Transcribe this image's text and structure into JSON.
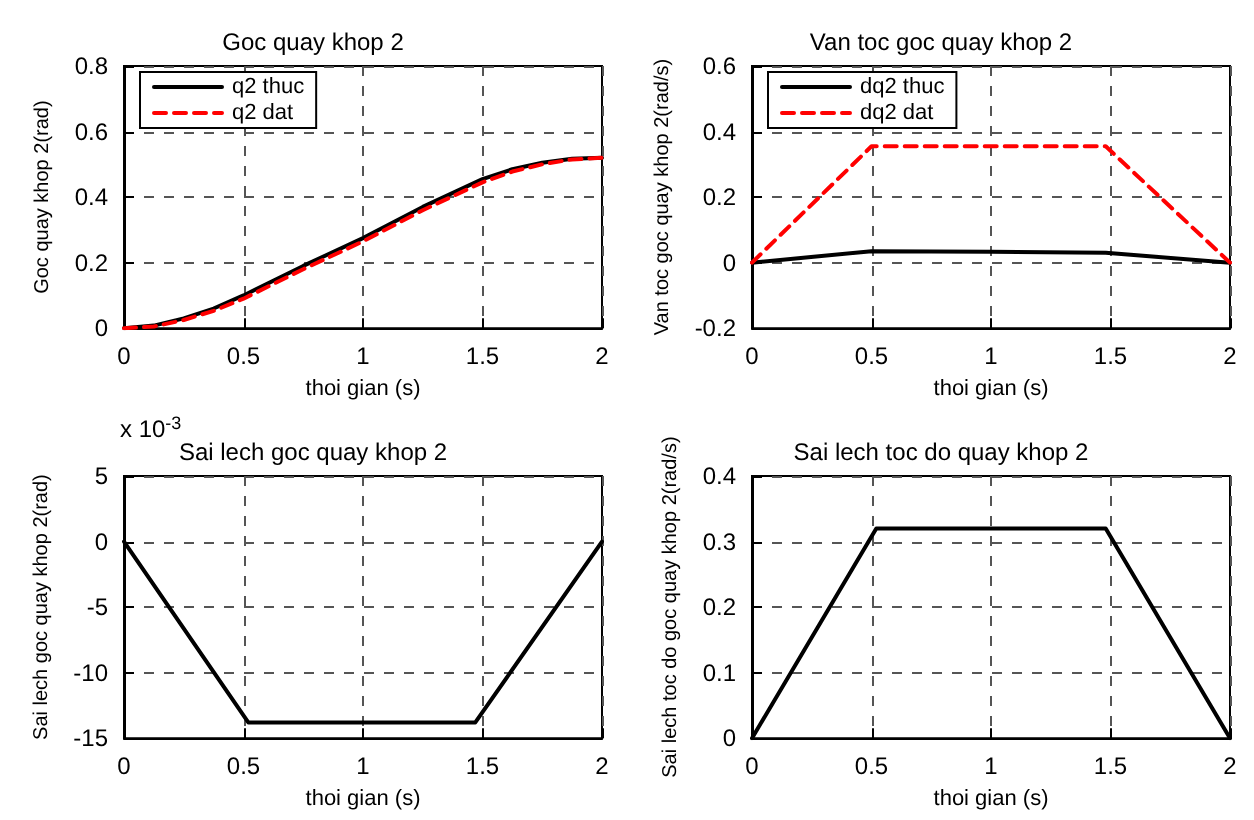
{
  "chart_data": [
    {
      "type": "line",
      "title": "Goc quay khop 2",
      "xlabel": "thoi gian (s)",
      "ylabel": "Goc quay khop 2(rad)",
      "x": [
        0,
        0.125,
        0.25,
        0.375,
        0.5,
        0.75,
        1,
        1.25,
        1.5,
        1.625,
        1.75,
        1.875,
        2
      ],
      "series": [
        {
          "name": "q2 thuc",
          "color": "#000000",
          "line_style": "solid",
          "values": [
            0,
            0.008,
            0.03,
            0.06,
            0.1,
            0.19,
            0.275,
            0.37,
            0.455,
            0.485,
            0.505,
            0.517,
            0.52
          ]
        },
        {
          "name": "q2 dat",
          "color": "#ff0000",
          "line_style": "dashed",
          "values": [
            0,
            0.005,
            0.025,
            0.053,
            0.09,
            0.18,
            0.265,
            0.36,
            0.445,
            0.478,
            0.5,
            0.515,
            0.52
          ]
        }
      ],
      "xlim": [
        0,
        2
      ],
      "xticks": [
        0,
        0.5,
        1,
        1.5,
        2
      ],
      "ylim": [
        0,
        0.8
      ],
      "yticks": [
        0,
        0.2,
        0.4,
        0.6,
        0.8
      ],
      "grid": true,
      "legend": "top left",
      "marker": "none"
    },
    {
      "type": "line",
      "title": "Van toc goc quay khop 2",
      "xlabel": "thoi gian (s)",
      "ylabel": "Van toc goc quay khop 2(rad/s)",
      "x": [
        0,
        0.5,
        1,
        1.48,
        2
      ],
      "series": [
        {
          "name": "dq2 thuc",
          "color": "#000000",
          "line_style": "solid",
          "values": [
            0,
            0.035,
            0.033,
            0.03,
            0
          ]
        },
        {
          "name": "dq2 dat",
          "color": "#ff0000",
          "line_style": "dashed",
          "values": [
            0,
            0.355,
            0.355,
            0.355,
            0
          ]
        }
      ],
      "xlim": [
        0,
        2
      ],
      "xticks": [
        0,
        0.5,
        1,
        1.5,
        2
      ],
      "ylim": [
        -0.2,
        0.6
      ],
      "yticks": [
        -0.2,
        0,
        0.2,
        0.4,
        0.6
      ],
      "grid": true,
      "legend": "top left",
      "marker": "none"
    },
    {
      "type": "line",
      "title": "Sai lech goc quay khop 2",
      "xlabel": "thoi gian (s)",
      "ylabel": "Sai lech goc quay khop 2(rad)",
      "annotations": [
        "x 10$^{-3}$"
      ],
      "x": [
        0,
        0.52,
        1,
        1.47,
        2
      ],
      "series": [
        {
          "color": "#000000",
          "line_style": "solid",
          "values": [
            0,
            -13.8,
            -13.8,
            -13.8,
            0
          ]
        }
      ],
      "xlim": [
        0,
        2
      ],
      "xticks": [
        0,
        0.5,
        1,
        1.5,
        2
      ],
      "ylim": [
        -15,
        5
      ],
      "yticks": [
        -15,
        -10,
        -5,
        0,
        5
      ],
      "grid": true,
      "marker": "none"
    },
    {
      "type": "line",
      "title": "Sai lech toc do quay khop 2",
      "xlabel": "thoi gian (s)",
      "ylabel": "Sai lech toc do goc quay khop 2(rad/s)",
      "x": [
        0,
        0.52,
        1,
        1.48,
        2
      ],
      "series": [
        {
          "color": "#000000",
          "line_style": "solid",
          "values": [
            0,
            0.32,
            0.32,
            0.32,
            0
          ]
        }
      ],
      "xlim": [
        0,
        2
      ],
      "xticks": [
        0,
        0.5,
        1,
        1.5,
        2
      ],
      "ylim": [
        0,
        0.4
      ],
      "yticks": [
        0,
        0.1,
        0.2,
        0.3,
        0.4
      ],
      "grid": true,
      "marker": "none"
    }
  ]
}
